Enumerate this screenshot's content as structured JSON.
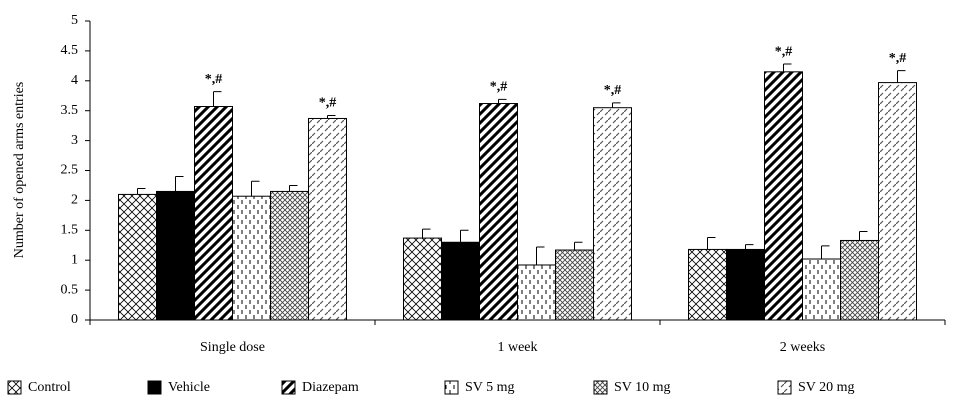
{
  "chart_data": {
    "type": "bar",
    "y_label": "Number of opened arms entries",
    "categories": [
      "Single dose",
      "1 week",
      "2 weeks"
    ],
    "ylim": [
      0,
      5
    ],
    "yticks": [
      0,
      0.5,
      1,
      1.5,
      2,
      2.5,
      3,
      3.5,
      4,
      4.5,
      5
    ],
    "legend": "bottom",
    "series": [
      {
        "name": "Control",
        "color": "#000000",
        "pattern": "crosshatch",
        "values": [
          2.1,
          1.37,
          1.18
        ],
        "errors": [
          0.1,
          0.15,
          0.2
        ]
      },
      {
        "name": "Vehicle",
        "color": "#000000",
        "pattern": "solid",
        "values": [
          2.15,
          1.3,
          1.18
        ],
        "errors": [
          0.25,
          0.2,
          0.08
        ]
      },
      {
        "name": "Diazepam",
        "color": "#000000",
        "pattern": "bold-diagonal",
        "values": [
          3.57,
          3.62,
          4.15
        ],
        "errors": [
          0.25,
          0.07,
          0.13
        ],
        "annotations": [
          "*,#",
          "*,#",
          "*,#"
        ]
      },
      {
        "name": "SV 5 mg",
        "color": "#000000",
        "pattern": "vertical-dash",
        "values": [
          2.07,
          0.92,
          1.02
        ],
        "errors": [
          0.25,
          0.3,
          0.22
        ]
      },
      {
        "name": "SV 10 mg",
        "color": "#000000",
        "pattern": "dense-hatch",
        "values": [
          2.15,
          1.17,
          1.33
        ],
        "errors": [
          0.1,
          0.13,
          0.15
        ]
      },
      {
        "name": "SV 20 mg",
        "color": "#000000",
        "pattern": "dashed-diagonal",
        "values": [
          3.37,
          3.55,
          3.97
        ],
        "errors": [
          0.05,
          0.08,
          0.2
        ],
        "annotations": [
          "*,#",
          "*,#",
          "*,#"
        ]
      }
    ]
  }
}
